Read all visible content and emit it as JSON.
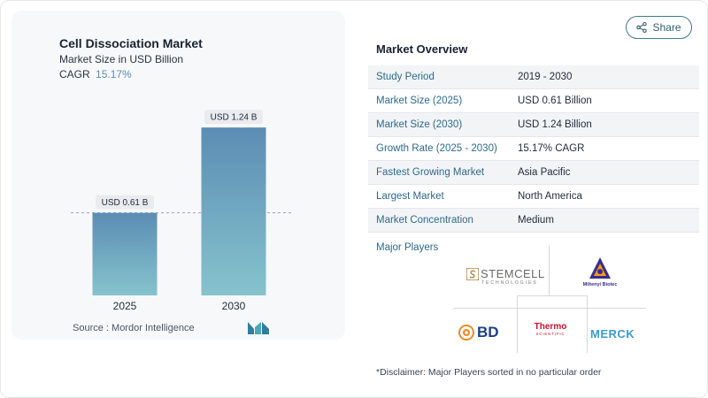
{
  "share": {
    "label": "Share",
    "icon": "share-icon"
  },
  "chart_data": {
    "type": "bar",
    "title": "Cell Dissociation Market",
    "subtitle": "Market Size in USD Billion",
    "cagr_label": "CAGR",
    "cagr_value": "15.17%",
    "categories": [
      "2025",
      "2030"
    ],
    "values": [
      0.61,
      1.24
    ],
    "value_labels": [
      "USD 0.61 B",
      "USD 1.24 B"
    ],
    "ylim": [
      0,
      1.45
    ],
    "grid": false,
    "reference_line_at": 0.61,
    "bar_gradient": [
      "#5b8db4",
      "#86c3cd"
    ]
  },
  "source": {
    "label": "Source :",
    "name": "Mordor Intelligence"
  },
  "overview": {
    "title": "Market Overview",
    "rows": [
      {
        "key": "Study Period",
        "value": "2019 - 2030"
      },
      {
        "key": "Market Size (2025)",
        "value": "USD 0.61 Billion"
      },
      {
        "key": "Market Size (2030)",
        "value": "USD 1.24 Billion"
      },
      {
        "key": "Growth Rate (2025 - 2030)",
        "value": "15.17% CAGR"
      },
      {
        "key": "Fastest Growing Market",
        "value": "Asia Pacific"
      },
      {
        "key": "Largest Market",
        "value": "North America"
      },
      {
        "key": "Market Concentration",
        "value": "Medium"
      }
    ]
  },
  "players": {
    "title": "Major Players",
    "logos": {
      "stemcell": {
        "name": "STEMCELL",
        "sub": "TECHNOLOGIES"
      },
      "miltenyi": {
        "name": "Miltenyi Biotec"
      },
      "bd": {
        "name": "BD"
      },
      "thermo": {
        "name": "Thermo",
        "sub": "SCIENTIFIC"
      },
      "merck": {
        "name": "MERCK"
      }
    }
  },
  "disclaimer": "*Disclaimer: Major Players sorted in no particular order"
}
